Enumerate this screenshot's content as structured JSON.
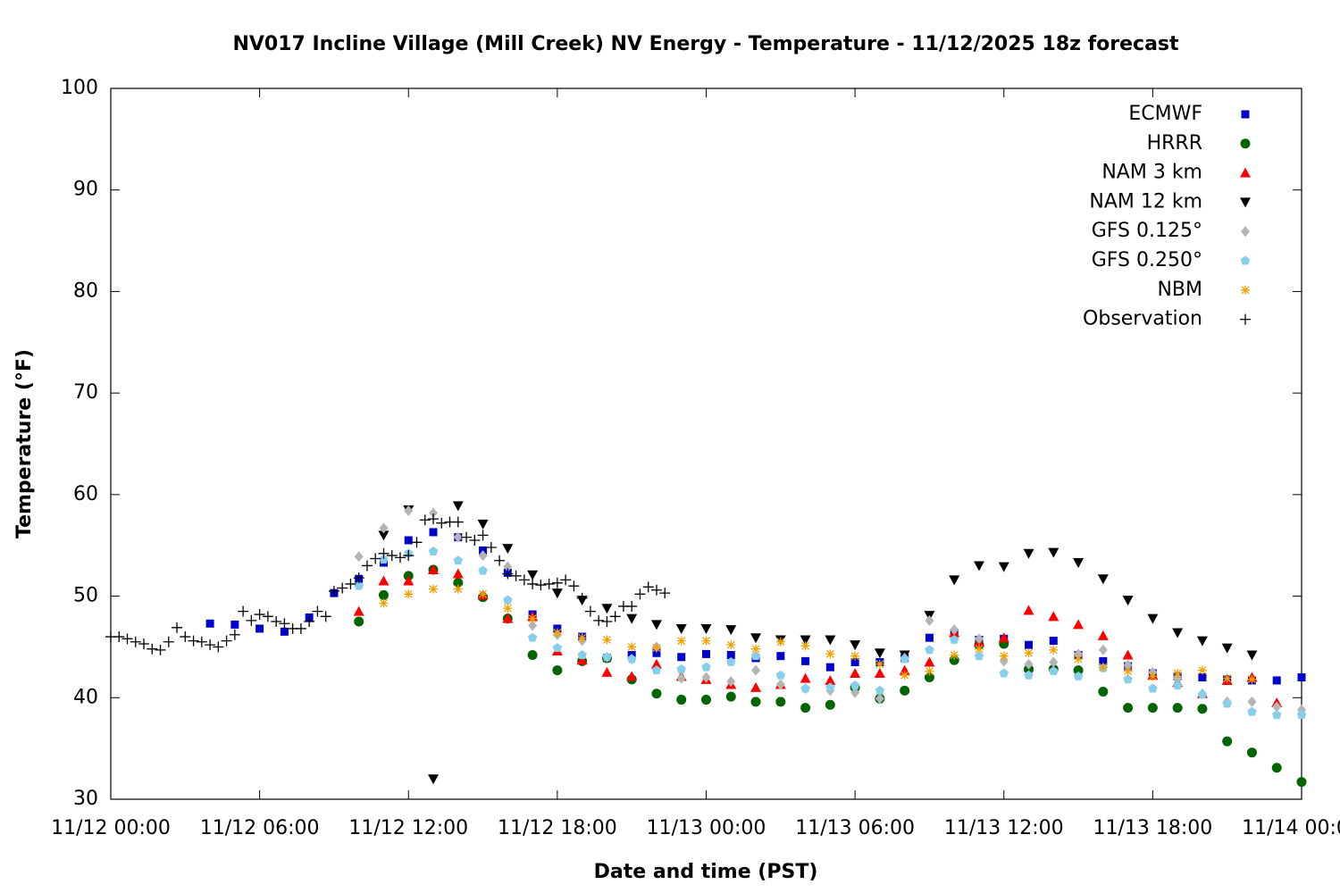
{
  "chart_data": {
    "type": "scatter",
    "title": "NV017 Incline Village (Mill Creek) NV Energy - Temperature - 11/12/2025 18z forecast",
    "xlabel": "Date and time (PST)",
    "ylabel": "Temperature (°F)",
    "xlim": [
      "11/12 00:00",
      "11/14 00:00"
    ],
    "xticks": [
      "11/12 00:00",
      "11/12 06:00",
      "11/12 12:00",
      "11/12 18:00",
      "11/13 00:00",
      "11/13 06:00",
      "11/13 12:00",
      "11/13 18:00",
      "11/14 00:00"
    ],
    "ylim": [
      30,
      100
    ],
    "yticks": [
      30,
      40,
      50,
      60,
      70,
      80,
      90,
      100
    ],
    "grid": false,
    "legend": "upper right",
    "series": [
      {
        "name": "ECMWF",
        "color": "#0000cc",
        "marker": "square",
        "x": [
          "11/12 04:00",
          "11/12 05:00",
          "11/12 06:00",
          "11/12 07:00",
          "11/12 08:00",
          "11/12 09:00",
          "11/12 10:00",
          "11/12 11:00",
          "11/12 12:00",
          "11/12 13:00",
          "11/12 14:00",
          "11/12 15:00",
          "11/12 16:00",
          "11/12 17:00",
          "11/12 18:00",
          "11/12 19:00",
          "11/12 20:00",
          "11/12 21:00",
          "11/12 22:00",
          "11/12 23:00",
          "11/13 00:00",
          "11/13 01:00",
          "11/13 02:00",
          "11/13 03:00",
          "11/13 04:00",
          "11/13 05:00",
          "11/13 06:00",
          "11/13 07:00",
          "11/13 08:00",
          "11/13 09:00",
          "11/13 10:00",
          "11/13 11:00",
          "11/13 12:00",
          "11/13 13:00",
          "11/13 14:00",
          "11/13 15:00",
          "11/13 16:00",
          "11/13 17:00",
          "11/13 18:00",
          "11/13 19:00",
          "11/13 20:00",
          "11/13 21:00",
          "11/13 22:00",
          "11/13 23:00",
          "11/14 00:00"
        ],
        "values": [
          47.3,
          47.2,
          46.8,
          46.5,
          47.9,
          50.3,
          51.7,
          53.3,
          55.5,
          56.3,
          55.8,
          54.5,
          52.3,
          48.2,
          46.8,
          46.0,
          43.9,
          44.2,
          44.4,
          44.0,
          44.3,
          44.2,
          43.9,
          44.1,
          43.6,
          43.0,
          43.5,
          43.5,
          43.9,
          45.9,
          46.4,
          45.7,
          45.8,
          45.2,
          45.6,
          44.2,
          43.6,
          43.1,
          42.4,
          42.1,
          42.0,
          41.8,
          41.7,
          41.7,
          42.0
        ]
      },
      {
        "name": "HRRR",
        "color": "#006400",
        "marker": "circle",
        "x": [
          "11/12 10:00",
          "11/12 11:00",
          "11/12 12:00",
          "11/12 13:00",
          "11/12 14:00",
          "11/12 15:00",
          "11/12 16:00",
          "11/12 17:00",
          "11/12 18:00",
          "11/12 19:00",
          "11/12 20:00",
          "11/12 21:00",
          "11/12 22:00",
          "11/12 23:00",
          "11/13 00:00",
          "11/13 01:00",
          "11/13 02:00",
          "11/13 03:00",
          "11/13 04:00",
          "11/13 05:00",
          "11/13 06:00",
          "11/13 07:00",
          "11/13 08:00",
          "11/13 09:00",
          "11/13 10:00",
          "11/13 11:00",
          "11/13 12:00",
          "11/13 13:00",
          "11/13 14:00",
          "11/13 15:00",
          "11/13 16:00",
          "11/13 17:00",
          "11/13 18:00",
          "11/13 19:00",
          "11/13 20:00",
          "11/13 21:00",
          "11/13 22:00",
          "11/13 23:00",
          "11/14 00:00"
        ],
        "values": [
          47.5,
          50.1,
          52.0,
          52.6,
          51.3,
          49.9,
          47.8,
          44.2,
          42.7,
          43.6,
          43.9,
          41.8,
          40.4,
          39.8,
          39.8,
          40.1,
          39.6,
          39.6,
          39.0,
          39.3,
          41.0,
          39.9,
          40.7,
          42.0,
          43.7,
          45.2,
          45.3,
          42.8,
          42.8,
          42.7,
          40.6,
          39.0,
          39.0,
          39.0,
          38.9,
          35.7,
          34.6,
          33.1,
          31.7
        ]
      },
      {
        "name": "NAM 3 km",
        "color": "#ff0000",
        "marker": "triangle-up",
        "x": [
          "11/12 10:00",
          "11/12 11:00",
          "11/12 12:00",
          "11/12 13:00",
          "11/12 14:00",
          "11/12 15:00",
          "11/12 16:00",
          "11/12 17:00",
          "11/12 18:00",
          "11/12 19:00",
          "11/12 20:00",
          "11/12 21:00",
          "11/12 22:00",
          "11/12 23:00",
          "11/13 00:00",
          "11/13 01:00",
          "11/13 02:00",
          "11/13 03:00",
          "11/13 04:00",
          "11/13 05:00",
          "11/13 06:00",
          "11/13 07:00",
          "11/13 08:00",
          "11/13 09:00",
          "11/13 10:00",
          "11/13 11:00",
          "11/13 12:00",
          "11/13 13:00",
          "11/13 14:00",
          "11/13 15:00",
          "11/13 16:00",
          "11/13 17:00",
          "11/13 18:00",
          "11/13 19:00",
          "11/13 20:00",
          "11/13 21:00",
          "11/13 22:00",
          "11/13 23:00"
        ],
        "values": [
          48.5,
          51.5,
          51.5,
          52.6,
          52.2,
          50.1,
          47.8,
          48.0,
          44.6,
          43.7,
          42.5,
          42.1,
          43.3,
          42.1,
          41.8,
          41.3,
          41.0,
          41.3,
          41.9,
          41.7,
          42.4,
          42.4,
          42.7,
          43.5,
          46.4,
          45.5,
          45.9,
          48.6,
          48.0,
          47.2,
          46.1,
          44.2,
          42.2,
          41.5,
          40.4,
          41.7,
          42.0,
          39.5
        ]
      },
      {
        "name": "NAM 12 km",
        "color": "#000000",
        "marker": "triangle-down",
        "x": [
          "11/12 11:00",
          "11/12 12:00",
          "11/12 13:00",
          "11/12 14:00",
          "11/12 15:00",
          "11/12 16:00",
          "11/12 17:00",
          "11/12 18:00",
          "11/12 19:00",
          "11/12 20:00",
          "11/12 21:00",
          "11/12 22:00",
          "11/12 23:00",
          "11/13 00:00",
          "11/13 01:00",
          "11/13 02:00",
          "11/13 03:00",
          "11/13 04:00",
          "11/13 05:00",
          "11/13 06:00",
          "11/13 07:00",
          "11/13 08:00",
          "11/13 09:00",
          "11/13 10:00",
          "11/13 11:00",
          "11/13 12:00",
          "11/13 13:00",
          "11/13 14:00",
          "11/13 15:00",
          "11/13 16:00",
          "11/13 17:00",
          "11/13 18:00",
          "11/13 19:00",
          "11/13 20:00",
          "11/13 21:00",
          "11/13 22:00"
        ],
        "values": [
          56.0,
          58.5,
          32.0,
          58.9,
          57.1,
          54.7,
          52.1,
          50.3,
          49.6,
          48.8,
          47.8,
          47.2,
          46.8,
          46.8,
          46.7,
          45.9,
          45.7,
          45.7,
          45.7,
          45.2,
          44.4,
          44.2,
          48.1,
          51.6,
          53.0,
          52.9,
          54.2,
          54.3,
          53.3,
          51.7,
          49.6,
          47.8,
          46.4,
          45.6,
          44.9,
          44.2
        ]
      },
      {
        "name": "GFS 0.125°",
        "color": "#b4b4b4",
        "marker": "diamond",
        "x": [
          "11/12 10:00",
          "11/12 11:00",
          "11/12 12:00",
          "11/12 13:00",
          "11/12 14:00",
          "11/12 15:00",
          "11/12 16:00",
          "11/12 17:00",
          "11/12 18:00",
          "11/12 19:00",
          "11/12 20:00",
          "11/12 21:00",
          "11/12 22:00",
          "11/12 23:00",
          "11/13 00:00",
          "11/13 01:00",
          "11/13 02:00",
          "11/13 03:00",
          "11/13 04:00",
          "11/13 05:00",
          "11/13 06:00",
          "11/13 07:00",
          "11/13 08:00",
          "11/13 09:00",
          "11/13 10:00",
          "11/13 11:00",
          "11/13 12:00",
          "11/13 13:00",
          "11/13 14:00",
          "11/13 15:00",
          "11/13 16:00",
          "11/13 17:00",
          "11/13 18:00",
          "11/13 19:00",
          "11/13 20:00",
          "11/13 21:00",
          "11/13 22:00",
          "11/13 23:00",
          "11/14 00:00"
        ],
        "values": [
          53.9,
          56.7,
          58.4,
          58.2,
          55.8,
          54.0,
          52.9,
          47.1,
          46.2,
          45.6,
          44.0,
          43.8,
          45.0,
          41.9,
          42.0,
          41.6,
          42.7,
          41.3,
          40.9,
          40.7,
          40.5,
          39.9,
          43.9,
          47.6,
          46.7,
          45.8,
          43.6,
          43.3,
          43.5,
          44.3,
          44.7,
          43.2,
          42.5,
          41.9,
          40.4,
          39.6,
          39.6,
          39.1,
          38.8
        ]
      },
      {
        "name": "GFS 0.250°",
        "color": "#87ceeb",
        "marker": "pentagon",
        "x": [
          "11/12 10:00",
          "11/12 11:00",
          "11/12 12:00",
          "11/12 13:00",
          "11/12 14:00",
          "11/12 15:00",
          "11/12 16:00",
          "11/12 17:00",
          "11/12 18:00",
          "11/12 19:00",
          "11/12 20:00",
          "11/12 21:00",
          "11/12 22:00",
          "11/12 23:00",
          "11/13 00:00",
          "11/13 01:00",
          "11/13 02:00",
          "11/13 03:00",
          "11/13 04:00",
          "11/13 05:00",
          "11/13 06:00",
          "11/13 07:00",
          "11/13 08:00",
          "11/13 09:00",
          "11/13 10:00",
          "11/13 11:00",
          "11/13 12:00",
          "11/13 13:00",
          "11/13 14:00",
          "11/13 15:00",
          "11/13 16:00",
          "11/13 17:00",
          "11/13 18:00",
          "11/13 19:00",
          "11/13 20:00",
          "11/13 21:00",
          "11/13 22:00",
          "11/13 23:00",
          "11/14 00:00"
        ],
        "values": [
          51.0,
          53.6,
          54.2,
          54.4,
          53.5,
          52.5,
          49.6,
          45.9,
          44.9,
          44.2,
          44.0,
          43.8,
          42.7,
          42.8,
          43.0,
          43.5,
          44.1,
          42.2,
          40.9,
          41.0,
          41.2,
          40.7,
          43.8,
          44.7,
          45.7,
          44.1,
          42.4,
          42.2,
          42.6,
          42.1,
          42.9,
          41.8,
          40.9,
          41.2,
          40.3,
          39.4,
          38.6,
          38.3,
          38.3
        ]
      },
      {
        "name": "NBM",
        "color": "#f0a000",
        "marker": "asterisk",
        "x": [
          "11/12 11:00",
          "11/12 12:00",
          "11/12 13:00",
          "11/12 14:00",
          "11/12 15:00",
          "11/12 16:00",
          "11/12 17:00",
          "11/12 18:00",
          "11/12 19:00",
          "11/12 20:00",
          "11/12 21:00",
          "11/12 22:00",
          "11/12 23:00",
          "11/13 00:00",
          "11/13 01:00",
          "11/13 02:00",
          "11/13 03:00",
          "11/13 04:00",
          "11/13 05:00",
          "11/13 06:00",
          "11/13 07:00",
          "11/13 08:00",
          "11/13 09:00",
          "11/13 10:00",
          "11/13 11:00",
          "11/13 12:00",
          "11/13 13:00",
          "11/13 14:00",
          "11/13 15:00",
          "11/13 16:00",
          "11/13 17:00",
          "11/13 18:00",
          "11/13 19:00",
          "11/13 20:00",
          "11/13 21:00",
          "11/13 22:00"
        ],
        "values": [
          49.3,
          50.2,
          50.7,
          50.7,
          50.2,
          48.8,
          47.8,
          46.4,
          45.9,
          45.7,
          45.0,
          44.9,
          45.6,
          45.6,
          45.2,
          44.8,
          45.5,
          45.1,
          44.3,
          44.1,
          43.3,
          42.2,
          42.6,
          44.2,
          44.8,
          44.1,
          44.4,
          44.7,
          43.8,
          43.0,
          42.6,
          42.1,
          42.4,
          42.7,
          41.9,
          41.8
        ]
      },
      {
        "name": "Observation",
        "color": "#000000",
        "marker": "plus",
        "x": [
          "11/12 00:00",
          "11/12 00:20",
          "11/12 00:40",
          "11/12 01:00",
          "11/12 01:20",
          "11/12 01:40",
          "11/12 02:00",
          "11/12 02:20",
          "11/12 02:40",
          "11/12 03:00",
          "11/12 03:20",
          "11/12 03:40",
          "11/12 04:00",
          "11/12 04:20",
          "11/12 04:40",
          "11/12 05:00",
          "11/12 05:20",
          "11/12 05:40",
          "11/12 06:00",
          "11/12 06:20",
          "11/12 06:40",
          "11/12 07:00",
          "11/12 07:20",
          "11/12 07:40",
          "11/12 08:00",
          "11/12 08:20",
          "11/12 08:40",
          "11/12 09:00",
          "11/12 09:20",
          "11/12 09:40",
          "11/12 10:00",
          "11/12 10:20",
          "11/12 10:40",
          "11/12 11:00",
          "11/12 11:20",
          "11/12 11:40",
          "11/12 12:00",
          "11/12 12:20",
          "11/12 12:40",
          "11/12 13:00",
          "11/12 13:20",
          "11/12 13:40",
          "11/12 14:00",
          "11/12 14:20",
          "11/12 14:40",
          "11/12 15:00",
          "11/12 15:20",
          "11/12 15:40",
          "11/12 16:00",
          "11/12 16:20",
          "11/12 16:40",
          "11/12 17:00",
          "11/12 17:20",
          "11/12 17:40",
          "11/12 18:00",
          "11/12 18:20",
          "11/12 18:40",
          "11/12 19:00",
          "11/12 19:20",
          "11/12 19:40",
          "11/12 20:00",
          "11/12 20:20",
          "11/12 20:40",
          "11/12 21:00",
          "11/12 21:20",
          "11/12 21:40",
          "11/12 22:00",
          "11/12 22:20"
        ],
        "values": [
          46.0,
          46.0,
          45.8,
          45.5,
          45.3,
          44.8,
          44.7,
          45.5,
          46.9,
          46.0,
          45.6,
          45.5,
          45.2,
          45.0,
          45.6,
          46.2,
          48.5,
          47.6,
          48.2,
          48.0,
          47.5,
          47.3,
          46.8,
          46.8,
          47.5,
          48.5,
          48.0,
          50.5,
          50.8,
          51.2,
          51.8,
          53.0,
          53.7,
          54.2,
          54.0,
          53.8,
          54.0,
          55.3,
          57.5,
          57.6,
          57.2,
          57.3,
          57.3,
          55.8,
          55.5,
          56.0,
          54.8,
          53.5,
          52.2,
          52.0,
          51.6,
          51.2,
          51.1,
          51.2,
          51.3,
          51.6,
          51.0,
          49.8,
          48.5,
          47.6,
          47.5,
          48.0,
          49.0,
          49.0,
          50.2,
          50.9,
          50.6,
          50.3
        ]
      }
    ]
  }
}
